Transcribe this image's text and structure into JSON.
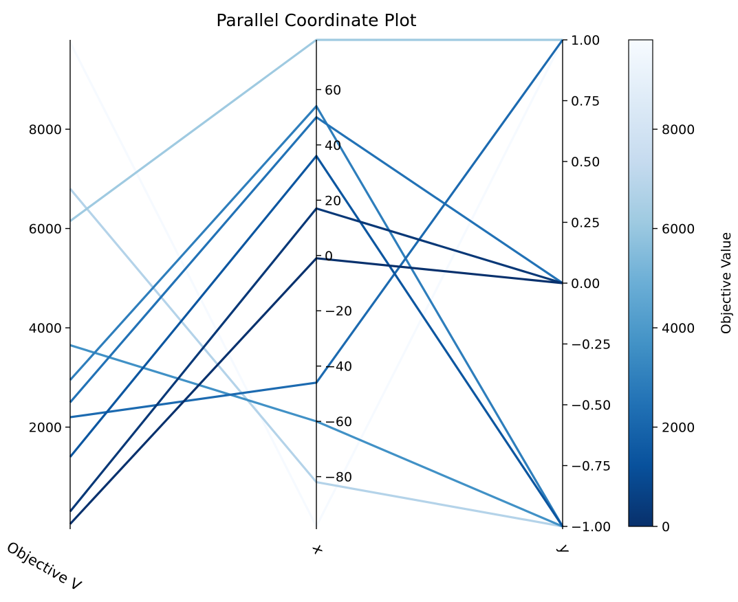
{
  "chart_data": {
    "type": "parallel_coordinates",
    "title": "Parallel Coordinate Plot",
    "axes": [
      {
        "name": "Objective Value",
        "label_shown": "Objective V",
        "range": [
          0,
          9800
        ],
        "ticks": [
          2000,
          4000,
          6000,
          8000
        ],
        "tick_labels": [
          "2000",
          "4000",
          "6000",
          "8000"
        ],
        "tick_side": "left"
      },
      {
        "name": "x",
        "label_shown": "x",
        "range": [
          -98,
          78
        ],
        "ticks": [
          -80,
          -60,
          -40,
          -20,
          0,
          20,
          40,
          60
        ],
        "tick_labels": [
          "−80",
          "−60",
          "−40",
          "−20",
          "0",
          "20",
          "40",
          "60"
        ],
        "tick_side": "right"
      },
      {
        "name": "y",
        "label_shown": "y",
        "range": [
          -1,
          1
        ],
        "ticks": [
          -1,
          -0.75,
          -0.5,
          -0.25,
          0,
          0.25,
          0.5,
          0.75,
          1
        ],
        "tick_labels": [
          "−1.00",
          "−0.75",
          "−0.50",
          "−0.25",
          "0.00",
          "0.25",
          "0.50",
          "0.75",
          "1.00"
        ],
        "tick_side": "right"
      }
    ],
    "lines": [
      {
        "objective": 9750,
        "x": -98,
        "y": 1.0
      },
      {
        "objective": 6800,
        "x": -82,
        "y": -1.0
      },
      {
        "objective": 6150,
        "x": 78,
        "y": 1.0
      },
      {
        "objective": 3650,
        "x": -60,
        "y": -1.0
      },
      {
        "objective": 2950,
        "x": 54,
        "y": -1.0
      },
      {
        "objective": 2500,
        "x": 50,
        "y": 0.0
      },
      {
        "objective": 2200,
        "x": -46,
        "y": 1.0
      },
      {
        "objective": 1400,
        "x": 36,
        "y": -1.0
      },
      {
        "objective": 300,
        "x": 17,
        "y": 0.0
      },
      {
        "objective": 50,
        "x": -1,
        "y": 0.0
      }
    ],
    "colorbar": {
      "label": "Objective Value",
      "colormap": "Blues_r",
      "range": [
        0,
        9800
      ],
      "ticks": [
        0,
        2000,
        4000,
        6000,
        8000
      ],
      "tick_labels": [
        "0",
        "2000",
        "4000",
        "6000",
        "8000"
      ],
      "color_low": "#08306b",
      "color_high": "#f7fbff"
    },
    "grid": false,
    "legend": "none"
  }
}
